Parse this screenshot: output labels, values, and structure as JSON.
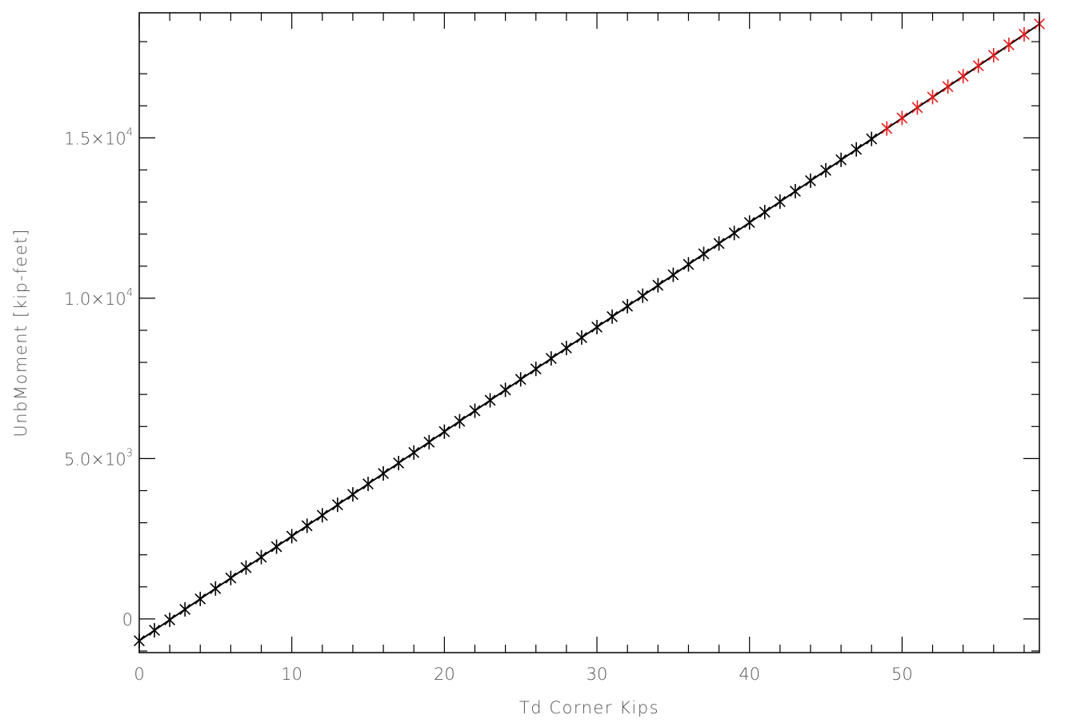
{
  "chart_data": {
    "type": "scatter",
    "title": "",
    "xlabel": "Td Corner Kips",
    "ylabel": "UnbMoment [kip-feet]",
    "xlim": [
      0,
      59
    ],
    "ylim": [
      -1050,
      18900
    ],
    "x_ticks": [
      {
        "value": 0,
        "label": "0"
      },
      {
        "value": 10,
        "label": "10"
      },
      {
        "value": 20,
        "label": "20"
      },
      {
        "value": 30,
        "label": "30"
      },
      {
        "value": 40,
        "label": "40"
      },
      {
        "value": 50,
        "label": "50"
      }
    ],
    "y_ticks": [
      {
        "value": 0,
        "mantissa": "0",
        "exponent": ""
      },
      {
        "value": 5000,
        "mantissa": "5.0×10",
        "exponent": "3"
      },
      {
        "value": 10000,
        "mantissa": "1.0×10",
        "exponent": "4"
      },
      {
        "value": 15000,
        "mantissa": "1.5×10",
        "exponent": "4"
      }
    ],
    "fit_line": {
      "x": [
        0,
        59
      ],
      "y": [
        -680,
        18550
      ],
      "color": "#000000"
    },
    "series": [
      {
        "marker": "asterisk",
        "color": "#000000",
        "x": [
          0,
          1,
          2,
          3,
          4,
          5,
          6,
          7,
          8,
          9,
          10,
          11,
          12,
          13,
          14,
          15,
          16,
          17,
          18,
          19,
          20,
          21,
          22,
          23,
          24,
          25,
          26,
          27,
          28,
          29,
          30,
          31,
          32,
          33,
          34,
          35,
          36,
          37,
          38,
          39,
          40,
          41,
          42,
          43,
          44,
          45,
          46,
          47,
          48
        ],
        "y": [
          -680,
          -354,
          -28,
          298,
          624,
          950,
          1276,
          1602,
          1928,
          2254,
          2580,
          2906,
          3232,
          3558,
          3884,
          4210,
          4536,
          4862,
          5188,
          5514,
          5840,
          6166,
          6492,
          6818,
          7144,
          7470,
          7796,
          8122,
          8448,
          8774,
          9100,
          9426,
          9752,
          10078,
          10404,
          10730,
          11056,
          11382,
          11708,
          12034,
          12360,
          12686,
          13012,
          13338,
          13664,
          13990,
          14316,
          14642,
          14968
        ]
      },
      {
        "marker": "asterisk",
        "color": "#e8191a",
        "x": [
          49,
          50,
          51,
          52,
          53,
          54,
          55,
          56,
          57,
          58,
          59
        ],
        "y": [
          15294,
          15620,
          15946,
          16272,
          16598,
          16924,
          17250,
          17576,
          17902,
          18228,
          18554
        ]
      }
    ]
  }
}
